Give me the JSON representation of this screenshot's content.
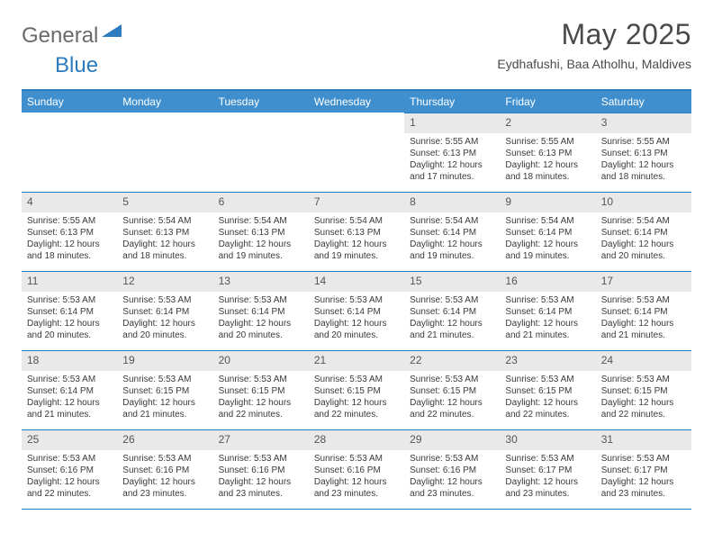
{
  "logo": {
    "part1": "General",
    "part2": "Blue"
  },
  "title": "May 2025",
  "subtitle": "Eydhafushi, Baa Atholhu, Maldives",
  "colors": {
    "header_bar": "#3f8fce",
    "rule": "#2b7bbf",
    "daynum_bg": "#e9e9e9",
    "text": "#3a3a3a",
    "logo_gray": "#6a6a6a",
    "logo_blue": "#2b7bbf"
  },
  "weekdays": [
    "Sunday",
    "Monday",
    "Tuesday",
    "Wednesday",
    "Thursday",
    "Friday",
    "Saturday"
  ],
  "first_weekday_index": 4,
  "days": [
    {
      "n": 1,
      "sunrise": "5:55 AM",
      "sunset": "6:13 PM",
      "daylight": "12 hours and 17 minutes."
    },
    {
      "n": 2,
      "sunrise": "5:55 AM",
      "sunset": "6:13 PM",
      "daylight": "12 hours and 18 minutes."
    },
    {
      "n": 3,
      "sunrise": "5:55 AM",
      "sunset": "6:13 PM",
      "daylight": "12 hours and 18 minutes."
    },
    {
      "n": 4,
      "sunrise": "5:55 AM",
      "sunset": "6:13 PM",
      "daylight": "12 hours and 18 minutes."
    },
    {
      "n": 5,
      "sunrise": "5:54 AM",
      "sunset": "6:13 PM",
      "daylight": "12 hours and 18 minutes."
    },
    {
      "n": 6,
      "sunrise": "5:54 AM",
      "sunset": "6:13 PM",
      "daylight": "12 hours and 19 minutes."
    },
    {
      "n": 7,
      "sunrise": "5:54 AM",
      "sunset": "6:13 PM",
      "daylight": "12 hours and 19 minutes."
    },
    {
      "n": 8,
      "sunrise": "5:54 AM",
      "sunset": "6:14 PM",
      "daylight": "12 hours and 19 minutes."
    },
    {
      "n": 9,
      "sunrise": "5:54 AM",
      "sunset": "6:14 PM",
      "daylight": "12 hours and 19 minutes."
    },
    {
      "n": 10,
      "sunrise": "5:54 AM",
      "sunset": "6:14 PM",
      "daylight": "12 hours and 20 minutes."
    },
    {
      "n": 11,
      "sunrise": "5:53 AM",
      "sunset": "6:14 PM",
      "daylight": "12 hours and 20 minutes."
    },
    {
      "n": 12,
      "sunrise": "5:53 AM",
      "sunset": "6:14 PM",
      "daylight": "12 hours and 20 minutes."
    },
    {
      "n": 13,
      "sunrise": "5:53 AM",
      "sunset": "6:14 PM",
      "daylight": "12 hours and 20 minutes."
    },
    {
      "n": 14,
      "sunrise": "5:53 AM",
      "sunset": "6:14 PM",
      "daylight": "12 hours and 20 minutes."
    },
    {
      "n": 15,
      "sunrise": "5:53 AM",
      "sunset": "6:14 PM",
      "daylight": "12 hours and 21 minutes."
    },
    {
      "n": 16,
      "sunrise": "5:53 AM",
      "sunset": "6:14 PM",
      "daylight": "12 hours and 21 minutes."
    },
    {
      "n": 17,
      "sunrise": "5:53 AM",
      "sunset": "6:14 PM",
      "daylight": "12 hours and 21 minutes."
    },
    {
      "n": 18,
      "sunrise": "5:53 AM",
      "sunset": "6:14 PM",
      "daylight": "12 hours and 21 minutes."
    },
    {
      "n": 19,
      "sunrise": "5:53 AM",
      "sunset": "6:15 PM",
      "daylight": "12 hours and 21 minutes."
    },
    {
      "n": 20,
      "sunrise": "5:53 AM",
      "sunset": "6:15 PM",
      "daylight": "12 hours and 22 minutes."
    },
    {
      "n": 21,
      "sunrise": "5:53 AM",
      "sunset": "6:15 PM",
      "daylight": "12 hours and 22 minutes."
    },
    {
      "n": 22,
      "sunrise": "5:53 AM",
      "sunset": "6:15 PM",
      "daylight": "12 hours and 22 minutes."
    },
    {
      "n": 23,
      "sunrise": "5:53 AM",
      "sunset": "6:15 PM",
      "daylight": "12 hours and 22 minutes."
    },
    {
      "n": 24,
      "sunrise": "5:53 AM",
      "sunset": "6:15 PM",
      "daylight": "12 hours and 22 minutes."
    },
    {
      "n": 25,
      "sunrise": "5:53 AM",
      "sunset": "6:16 PM",
      "daylight": "12 hours and 22 minutes."
    },
    {
      "n": 26,
      "sunrise": "5:53 AM",
      "sunset": "6:16 PM",
      "daylight": "12 hours and 23 minutes."
    },
    {
      "n": 27,
      "sunrise": "5:53 AM",
      "sunset": "6:16 PM",
      "daylight": "12 hours and 23 minutes."
    },
    {
      "n": 28,
      "sunrise": "5:53 AM",
      "sunset": "6:16 PM",
      "daylight": "12 hours and 23 minutes."
    },
    {
      "n": 29,
      "sunrise": "5:53 AM",
      "sunset": "6:16 PM",
      "daylight": "12 hours and 23 minutes."
    },
    {
      "n": 30,
      "sunrise": "5:53 AM",
      "sunset": "6:17 PM",
      "daylight": "12 hours and 23 minutes."
    },
    {
      "n": 31,
      "sunrise": "5:53 AM",
      "sunset": "6:17 PM",
      "daylight": "12 hours and 23 minutes."
    }
  ],
  "labels": {
    "sunrise": "Sunrise:",
    "sunset": "Sunset:",
    "daylight": "Daylight:"
  }
}
